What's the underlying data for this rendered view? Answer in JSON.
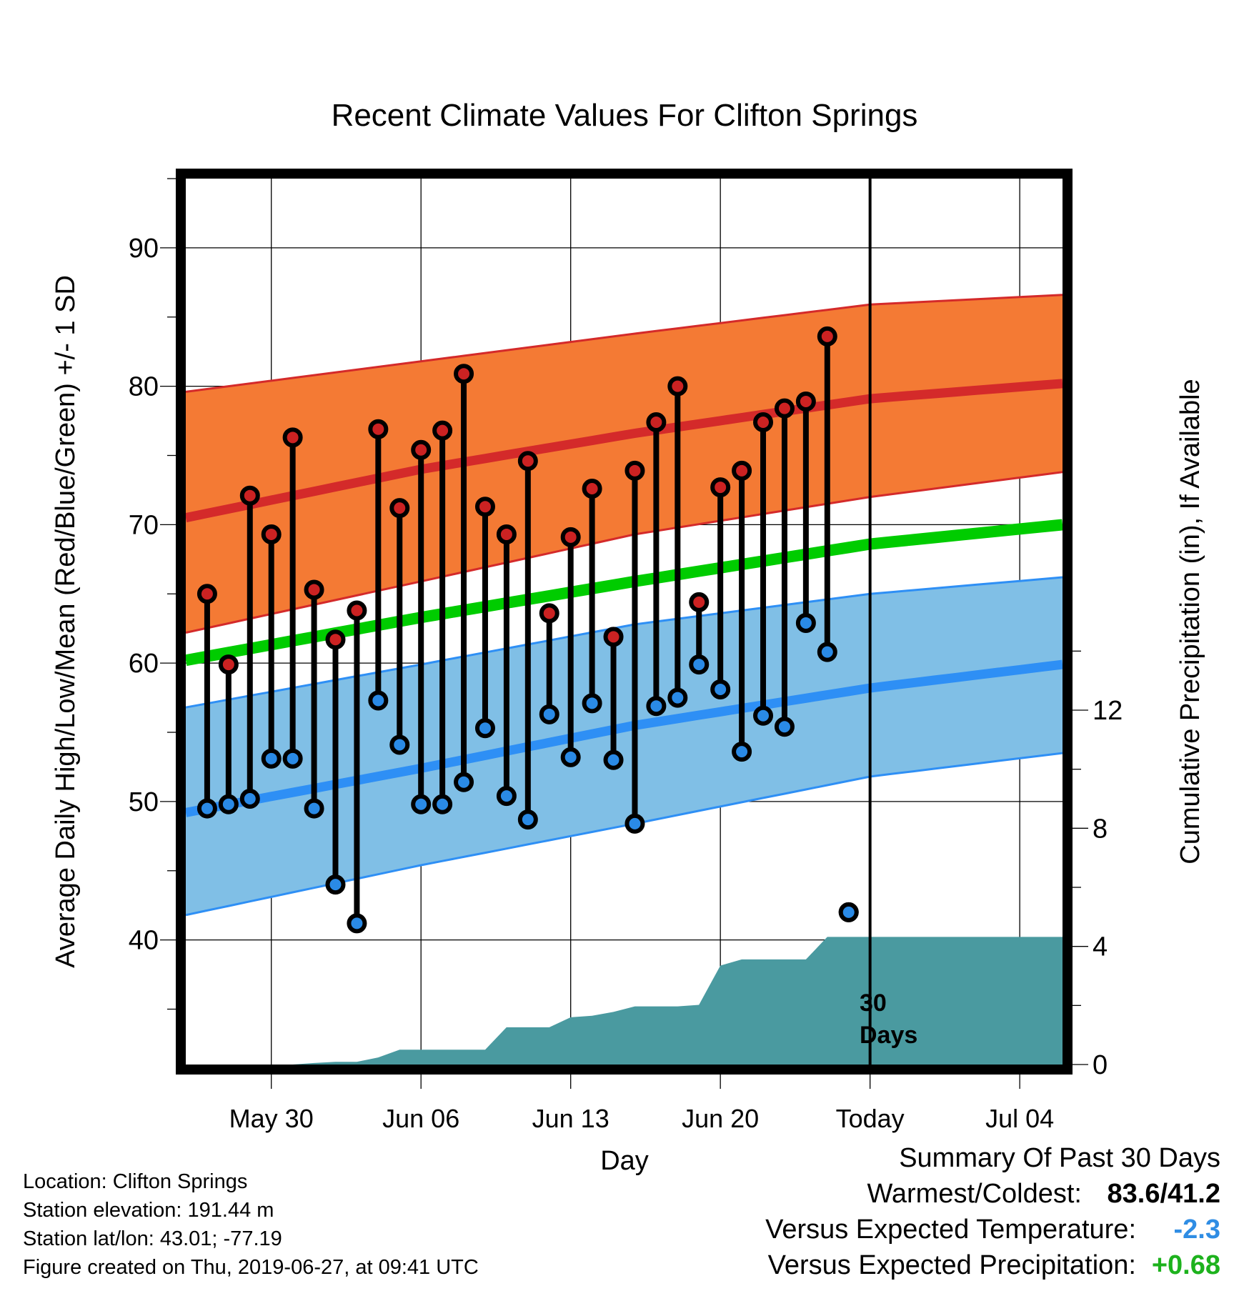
{
  "chart_data": {
    "type": "line",
    "title": "Recent Climate Values For Clifton Springs",
    "xlabel": "Day",
    "ylabel_left": "Average Daily High/Low/Mean (Red/Blue/Green) +/- 1 SD",
    "ylabel_right": "Cumulative Precipitation (in), If Available",
    "x_tick_labels": [
      {
        "date": "2019-05-30",
        "label": "May 30"
      },
      {
        "date": "2019-06-06",
        "label": "Jun 06"
      },
      {
        "date": "2019-06-13",
        "label": "Jun 13"
      },
      {
        "date": "2019-06-20",
        "label": "Jun 20"
      },
      {
        "date": "2019-06-27",
        "label": "Today"
      },
      {
        "date": "2019-07-04",
        "label": "Jul 04"
      }
    ],
    "xlim": [
      "2019-05-26",
      "2019-07-06"
    ],
    "y_left_ticks": [
      40,
      50,
      60,
      70,
      80,
      90
    ],
    "y_left_range": [
      31,
      95
    ],
    "y_right_ticks": [
      0,
      4,
      8,
      12
    ],
    "y_right_range": [
      0,
      30
    ],
    "today_marker": {
      "date": "2019-06-27",
      "annotation_line1": "30",
      "annotation_line2": "Days"
    },
    "normals": {
      "dates": [
        "2019-05-26",
        "2019-06-06",
        "2019-06-16",
        "2019-06-27",
        "2019-07-06"
      ],
      "high_mean": [
        70.5,
        74.0,
        76.6,
        79.1,
        80.2
      ],
      "high_upper": [
        79.6,
        81.8,
        83.8,
        85.9,
        86.6
      ],
      "high_lower": [
        62.2,
        65.9,
        69.3,
        72.0,
        73.8
      ],
      "mean": [
        60.2,
        63.3,
        65.9,
        68.6,
        70.0
      ],
      "low_mean": [
        49.2,
        52.4,
        55.5,
        58.2,
        59.9
      ],
      "low_upper": [
        56.8,
        59.9,
        62.8,
        65.0,
        66.2
      ],
      "low_lower": [
        41.8,
        45.4,
        48.4,
        51.8,
        53.5
      ]
    },
    "observations": {
      "dates": [
        "2019-05-27",
        "2019-05-28",
        "2019-05-29",
        "2019-05-30",
        "2019-05-31",
        "2019-06-01",
        "2019-06-02",
        "2019-06-03",
        "2019-06-04",
        "2019-06-05",
        "2019-06-06",
        "2019-06-07",
        "2019-06-08",
        "2019-06-09",
        "2019-06-10",
        "2019-06-11",
        "2019-06-12",
        "2019-06-13",
        "2019-06-14",
        "2019-06-15",
        "2019-06-16",
        "2019-06-17",
        "2019-06-18",
        "2019-06-19",
        "2019-06-20",
        "2019-06-21",
        "2019-06-22",
        "2019-06-23",
        "2019-06-24",
        "2019-06-25",
        "2019-06-26"
      ],
      "high": [
        65.0,
        59.9,
        72.1,
        69.3,
        76.3,
        65.3,
        61.7,
        63.8,
        76.9,
        71.2,
        75.4,
        76.8,
        80.9,
        71.3,
        69.3,
        74.6,
        63.6,
        69.1,
        72.6,
        61.9,
        73.9,
        77.4,
        80.0,
        64.4,
        72.7,
        73.9,
        77.4,
        78.4,
        78.9,
        83.6,
        42.0
      ],
      "low": [
        49.5,
        49.8,
        50.2,
        53.1,
        53.1,
        49.5,
        44.0,
        41.2,
        57.3,
        54.1,
        49.8,
        49.8,
        51.4,
        55.3,
        50.4,
        48.7,
        56.3,
        53.2,
        57.1,
        53.0,
        48.4,
        56.9,
        57.5,
        59.9,
        58.1,
        53.6,
        56.2,
        55.4,
        62.9,
        60.8,
        42.0
      ]
    },
    "precip_cumulative": {
      "dates": [
        "2019-05-26",
        "2019-05-31",
        "2019-06-01",
        "2019-06-02",
        "2019-06-03",
        "2019-06-04",
        "2019-06-05",
        "2019-06-06",
        "2019-06-07",
        "2019-06-08",
        "2019-06-09",
        "2019-06-10",
        "2019-06-11",
        "2019-06-12",
        "2019-06-13",
        "2019-06-14",
        "2019-06-15",
        "2019-06-16",
        "2019-06-17",
        "2019-06-18",
        "2019-06-19",
        "2019-06-20",
        "2019-06-21",
        "2019-06-22",
        "2019-06-23",
        "2019-06-24",
        "2019-06-25",
        "2019-06-26",
        "2019-07-06"
      ],
      "values": [
        0.0,
        0.0,
        0.05,
        0.09,
        0.09,
        0.24,
        0.5,
        0.5,
        0.5,
        0.5,
        0.5,
        1.26,
        1.26,
        1.26,
        1.6,
        1.65,
        1.78,
        1.97,
        1.97,
        1.97,
        2.02,
        3.35,
        3.56,
        3.56,
        3.56,
        3.56,
        4.32,
        4.32,
        4.32
      ]
    },
    "colors": {
      "high_band": "#f47a34",
      "high_line": "#d42a2a",
      "mean_line": "#00cc00",
      "low_band": "#80bfe6",
      "low_line": "#2e8ff5",
      "precip_fill": "#4a9aa0",
      "high_marker": "#cc2222",
      "low_marker": "#2a8ae6"
    },
    "grid": true,
    "legend": "none"
  },
  "info": {
    "location": "Location: Clifton Springs",
    "elevation": "Station elevation: 191.44 m",
    "latlon": "Station lat/lon: 43.01; -77.19",
    "created": "Figure created on Thu, 2019-06-27, at 09:41 UTC"
  },
  "summary": {
    "heading": "Summary Of Past 30 Days",
    "warmest_label": "Warmest/Coldest:",
    "warmest_value": "83.6/41.2",
    "temp_label": "Versus Expected Temperature:",
    "temp_value": "-2.3",
    "precip_label": "Versus Expected Precipitation:",
    "precip_value": "+0.68"
  }
}
